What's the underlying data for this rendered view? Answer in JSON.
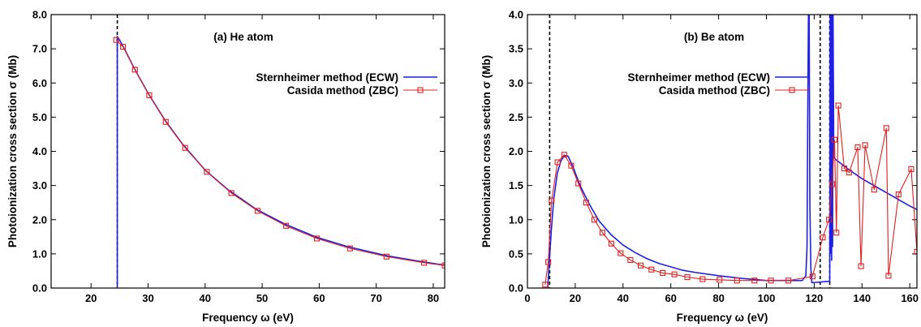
{
  "chart_data": [
    {
      "type": "line",
      "title": "(a) He atom",
      "xlabel": "Frequency ω (eV)",
      "ylabel": "Photoionization cross section σ (Mb)",
      "xlim": [
        13,
        82
      ],
      "ylim": [
        0,
        8
      ],
      "xticks": [
        "20",
        "30",
        "40",
        "50",
        "60",
        "70",
        "80"
      ],
      "yticks": [
        "0.0",
        "1.0",
        "2.0",
        "3.0",
        "4.0",
        "5.0",
        "6.0",
        "7.0",
        "8.0"
      ],
      "legend_position": "top-right",
      "threshold_lines": [
        24.6
      ],
      "series": [
        {
          "name": "Sternheimer method (ECW)",
          "color": "#1f1fe6",
          "style": "line",
          "x": [
            24.6,
            24.6,
            25.0,
            26.0,
            27.5,
            30.0,
            33.0,
            36.0,
            40.0,
            44.0,
            49.0,
            54.0,
            59.5,
            65.0,
            72.0,
            78.0,
            82.0
          ],
          "y": [
            0.0,
            7.35,
            7.26,
            6.95,
            6.45,
            5.7,
            4.9,
            4.22,
            3.45,
            2.88,
            2.3,
            1.87,
            1.49,
            1.21,
            0.94,
            0.77,
            0.67
          ]
        },
        {
          "name": "Casida method (ZBC)",
          "color": "#e02020",
          "style": "line-square",
          "x": [
            24.4,
            25.6,
            27.7,
            30.2,
            33.1,
            36.5,
            40.3,
            44.6,
            49.2,
            54.2,
            59.6,
            65.4,
            71.8,
            78.4,
            82.0
          ],
          "y": [
            7.26,
            7.06,
            6.39,
            5.64,
            4.86,
            4.1,
            3.4,
            2.78,
            2.26,
            1.82,
            1.45,
            1.16,
            0.92,
            0.74,
            0.66
          ]
        }
      ]
    },
    {
      "type": "line",
      "title": "(b) Be atom",
      "xlabel": "Frequency ω (eV)",
      "ylabel": "Photoionization cross section σ (Mb)",
      "xlim": [
        0,
        163
      ],
      "ylim": [
        0,
        4
      ],
      "xticks": [
        "0",
        "20",
        "40",
        "60",
        "80",
        "100",
        "120",
        "140",
        "160"
      ],
      "yticks": [
        "0.0",
        "0.5",
        "1.0",
        "1.5",
        "2.0",
        "2.5",
        "3.0",
        "3.5",
        "4.0"
      ],
      "legend_position": "top-left",
      "threshold_lines": [
        9.3,
        122.5,
        126.5
      ],
      "series": [
        {
          "name": "Sternheimer method (ECW)",
          "color": "#1f1fe6",
          "style": "line",
          "x": [
            8.5,
            9.0,
            10.0,
            11.0,
            12.5,
            14.0,
            15.5,
            17.0,
            19.0,
            22.0,
            26.0,
            30.0,
            35.0,
            40.0,
            45.0,
            50.0,
            55.0,
            60.0,
            65.0,
            70.0,
            80.0,
            90.0,
            100.0,
            110.0,
            115.0,
            116.5,
            117.0,
            117.3,
            117.6,
            117.9,
            118.2,
            118.6,
            119.0,
            120.0,
            126.5,
            126.7,
            126.9,
            127.1,
            127.3,
            127.5,
            127.7,
            127.9,
            128.2,
            128.6,
            129.0,
            135.0,
            140.0,
            145.0,
            150.0,
            155.0,
            160.0,
            163.0
          ],
          "y": [
            0.0,
            0.3,
            0.85,
            1.3,
            1.68,
            1.86,
            1.94,
            1.93,
            1.78,
            1.5,
            1.22,
            0.98,
            0.78,
            0.63,
            0.52,
            0.43,
            0.36,
            0.31,
            0.26,
            0.23,
            0.18,
            0.14,
            0.11,
            0.11,
            0.11,
            0.18,
            0.6,
            2.5,
            4.0,
            4.0,
            1.2,
            0.3,
            0.08,
            0.08,
            0.1,
            4.0,
            0.5,
            4.0,
            0.4,
            4.0,
            0.6,
            4.0,
            1.92,
            1.9,
            1.88,
            1.72,
            1.6,
            1.5,
            1.4,
            1.3,
            1.2,
            1.15
          ]
        },
        {
          "name": "Casida method (ZBC)",
          "color": "#e02020",
          "style": "line-square",
          "x": [
            7.4,
            8.7,
            10.1,
            12.6,
            15.4,
            18.3,
            21.3,
            24.6,
            28.0,
            31.4,
            35.1,
            39.0,
            43.1,
            47.4,
            51.9,
            56.6,
            61.5,
            66.9,
            73.3,
            80.4,
            87.7,
            95.0,
            101.9,
            109.2,
            119.3,
            123.6,
            126.2,
            127.5,
            128.5,
            129.3,
            130.1,
            132.6,
            134.6,
            138.2,
            139.6,
            141.3,
            145.1,
            150.2,
            151.1,
            155.3,
            160.6,
            163.0
          ],
          "y": [
            0.05,
            0.38,
            1.28,
            1.84,
            1.95,
            1.79,
            1.53,
            1.25,
            1.0,
            0.81,
            0.65,
            0.51,
            0.41,
            0.33,
            0.27,
            0.22,
            0.2,
            0.16,
            0.13,
            0.12,
            0.11,
            0.11,
            0.11,
            0.11,
            0.17,
            0.74,
            1.0,
            1.52,
            2.17,
            0.81,
            2.67,
            1.75,
            1.69,
            2.06,
            0.32,
            2.09,
            1.44,
            2.34,
            0.18,
            1.37,
            1.74,
            0.53
          ]
        }
      ]
    }
  ]
}
